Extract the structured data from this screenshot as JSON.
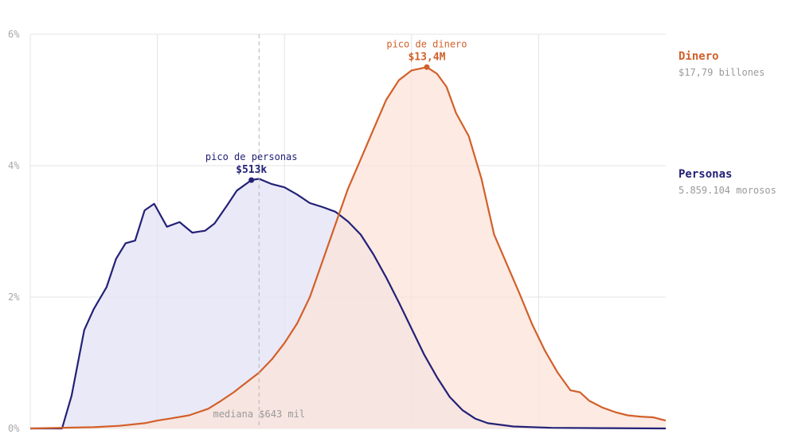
{
  "colors": {
    "personas": "#232176",
    "dinero": "#d2602a",
    "personas_fill": "#e3e2f4",
    "dinero_fill": "#fbe3da",
    "grid": "#e4e4e4",
    "tick_text": "#a8a8a8",
    "median_line": "#b5b5b5",
    "median_text": "#9a9a9a"
  },
  "legend": {
    "dinero": {
      "label": "Dinero",
      "value": "$17,79 billones"
    },
    "personas": {
      "label": "Personas",
      "value": "5.859.104 morosos"
    }
  },
  "annotations": {
    "pico_personas": {
      "label": "pico de personas",
      "value": "$513k"
    },
    "pico_dinero": {
      "label": "pico de dinero",
      "value": "$13,4M"
    },
    "mediana": {
      "label": "mediana $643 mil"
    }
  },
  "chart_data": {
    "type": "area",
    "title": "",
    "xlabel": "",
    "ylabel": "",
    "ylim": [
      0,
      6
    ],
    "yticks": [
      {
        "value": 0,
        "label": "0%"
      },
      {
        "value": 2,
        "label": "2%"
      },
      {
        "value": 4,
        "label": "4%"
      },
      {
        "value": 6,
        "label": "6%"
      }
    ],
    "xlim": [
      0,
      100
    ],
    "x_gridlines": [
      20,
      40,
      60,
      80
    ],
    "grid": true,
    "legend_position": "right",
    "median_x": 36,
    "peaks": {
      "personas": [
        34.8,
        3.78
      ],
      "dinero": [
        62.4,
        5.5
      ]
    },
    "series": [
      {
        "name": "Personas",
        "key": "personas",
        "points": [
          [
            0,
            0
          ],
          [
            5,
            0
          ],
          [
            6.5,
            0.5
          ],
          [
            8.5,
            1.5
          ],
          [
            10,
            1.82
          ],
          [
            12,
            2.15
          ],
          [
            13.5,
            2.58
          ],
          [
            15,
            2.82
          ],
          [
            16.5,
            2.86
          ],
          [
            18,
            3.32
          ],
          [
            19.5,
            3.42
          ],
          [
            21.5,
            3.07
          ],
          [
            23.5,
            3.14
          ],
          [
            25.5,
            2.98
          ],
          [
            27.5,
            3.01
          ],
          [
            29,
            3.12
          ],
          [
            31,
            3.4
          ],
          [
            32.5,
            3.62
          ],
          [
            34.8,
            3.78
          ],
          [
            36,
            3.8
          ],
          [
            38,
            3.72
          ],
          [
            40,
            3.67
          ],
          [
            42,
            3.56
          ],
          [
            44,
            3.43
          ],
          [
            46,
            3.37
          ],
          [
            48,
            3.3
          ],
          [
            50,
            3.15
          ],
          [
            52,
            2.95
          ],
          [
            54,
            2.65
          ],
          [
            56,
            2.3
          ],
          [
            58,
            1.92
          ],
          [
            60,
            1.52
          ],
          [
            62,
            1.12
          ],
          [
            64,
            0.78
          ],
          [
            66,
            0.48
          ],
          [
            68,
            0.28
          ],
          [
            70,
            0.15
          ],
          [
            72,
            0.08
          ],
          [
            76,
            0.03
          ],
          [
            82,
            0.01
          ],
          [
            90,
            0.005
          ],
          [
            100,
            0
          ]
        ]
      },
      {
        "name": "Dinero",
        "key": "dinero",
        "points": [
          [
            0,
            0
          ],
          [
            10,
            0.02
          ],
          [
            14,
            0.04
          ],
          [
            18,
            0.08
          ],
          [
            20,
            0.12
          ],
          [
            22,
            0.15
          ],
          [
            25,
            0.2
          ],
          [
            28,
            0.3
          ],
          [
            30,
            0.42
          ],
          [
            32,
            0.55
          ],
          [
            34,
            0.7
          ],
          [
            36,
            0.85
          ],
          [
            38,
            1.05
          ],
          [
            40,
            1.3
          ],
          [
            42,
            1.6
          ],
          [
            44,
            2.0
          ],
          [
            46,
            2.55
          ],
          [
            48,
            3.1
          ],
          [
            50,
            3.65
          ],
          [
            52,
            4.1
          ],
          [
            54,
            4.55
          ],
          [
            56,
            5.0
          ],
          [
            58,
            5.3
          ],
          [
            60,
            5.45
          ],
          [
            62.4,
            5.5
          ],
          [
            64,
            5.4
          ],
          [
            65.5,
            5.2
          ],
          [
            67,
            4.8
          ],
          [
            69,
            4.45
          ],
          [
            71,
            3.8
          ],
          [
            73,
            2.95
          ],
          [
            75,
            2.5
          ],
          [
            77,
            2.05
          ],
          [
            79,
            1.58
          ],
          [
            81,
            1.18
          ],
          [
            83,
            0.85
          ],
          [
            85,
            0.58
          ],
          [
            86.5,
            0.55
          ],
          [
            88,
            0.42
          ],
          [
            90,
            0.32
          ],
          [
            92,
            0.25
          ],
          [
            94,
            0.2
          ],
          [
            96,
            0.18
          ],
          [
            98,
            0.17
          ],
          [
            100,
            0.12
          ]
        ]
      }
    ]
  }
}
